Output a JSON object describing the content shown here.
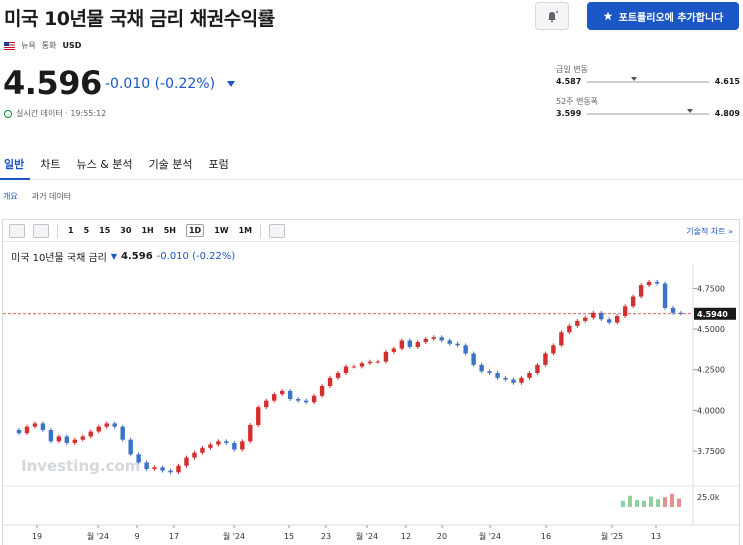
{
  "header": {
    "title": "미국 10년물 국채 금리 채권수익률",
    "add_portfolio": "포트폴리오에 추가합니다"
  },
  "meta": {
    "exchange": "뉴욕",
    "currency_label": "통화",
    "currency": "USD"
  },
  "quote": {
    "price": "4.596",
    "change": "-0.010 (-0.22%)",
    "realtime": "실시간 데이터 · 19:55:12"
  },
  "day_range": {
    "label": "금일 변동",
    "low": "4.587",
    "high": "4.615",
    "position": 0.36
  },
  "week52_range": {
    "label": "52주 변동폭",
    "low": "3.599",
    "high": "4.809",
    "position": 0.82
  },
  "tabs": [
    "일반",
    "차트",
    "뉴스 & 분석",
    "기술 분석",
    "포럼"
  ],
  "subtabs": [
    "개요",
    "과거 데이터"
  ],
  "toolbar": {
    "intervals": [
      "1",
      "5",
      "15",
      "30",
      "1H",
      "5H",
      "1D",
      "1W",
      "1M"
    ],
    "selected": "1D",
    "tech_chart": "기술적 차트 »"
  },
  "legend": {
    "name": "미국 10년물 국채 금리",
    "price": "4.596",
    "change": "-0.010 (-0.22%)"
  },
  "colors": {
    "up": "#d32f2f",
    "down": "#3b74c7",
    "accent": "#1a56c5"
  },
  "chart_data": {
    "type": "candlestick",
    "y_ticks": [
      "4.7500",
      "4.5000",
      "4.2500",
      "4.0000",
      "3.7500"
    ],
    "ylim": [
      3.56,
      4.9
    ],
    "current_label": "4.5940",
    "current_value": 4.594,
    "volume_label": "25.0k",
    "x_labels": [
      "19",
      "월 '24",
      "9",
      "17",
      "월 '24",
      "15",
      "23",
      "월 '24",
      "12",
      "20",
      "월 '24",
      "16",
      "월 '25",
      "13"
    ],
    "watermark": "Investing.com",
    "closes": [
      3.86,
      3.9,
      3.92,
      3.88,
      3.81,
      3.84,
      3.8,
      3.82,
      3.84,
      3.87,
      3.9,
      3.92,
      3.9,
      3.82,
      3.73,
      3.68,
      3.64,
      3.65,
      3.63,
      3.62,
      3.66,
      3.71,
      3.74,
      3.77,
      3.79,
      3.81,
      3.8,
      3.76,
      3.81,
      3.91,
      4.02,
      4.06,
      4.1,
      4.12,
      4.07,
      4.06,
      4.05,
      4.09,
      4.15,
      4.2,
      4.23,
      4.27,
      4.27,
      4.29,
      4.3,
      4.3,
      4.36,
      4.38,
      4.43,
      4.39,
      4.42,
      4.44,
      4.45,
      4.43,
      4.41,
      4.4,
      4.35,
      4.28,
      4.24,
      4.23,
      4.2,
      4.19,
      4.17,
      4.2,
      4.23,
      4.28,
      4.35,
      4.4,
      4.48,
      4.52,
      4.55,
      4.57,
      4.6,
      4.56,
      4.54,
      4.58,
      4.64,
      4.7,
      4.77,
      4.79,
      4.78,
      4.63,
      4.6,
      4.596
    ],
    "volume": [
      0.45,
      0.8,
      0.5,
      0.45,
      0.75,
      0.55,
      0.7,
      0.95,
      0.6
    ]
  }
}
